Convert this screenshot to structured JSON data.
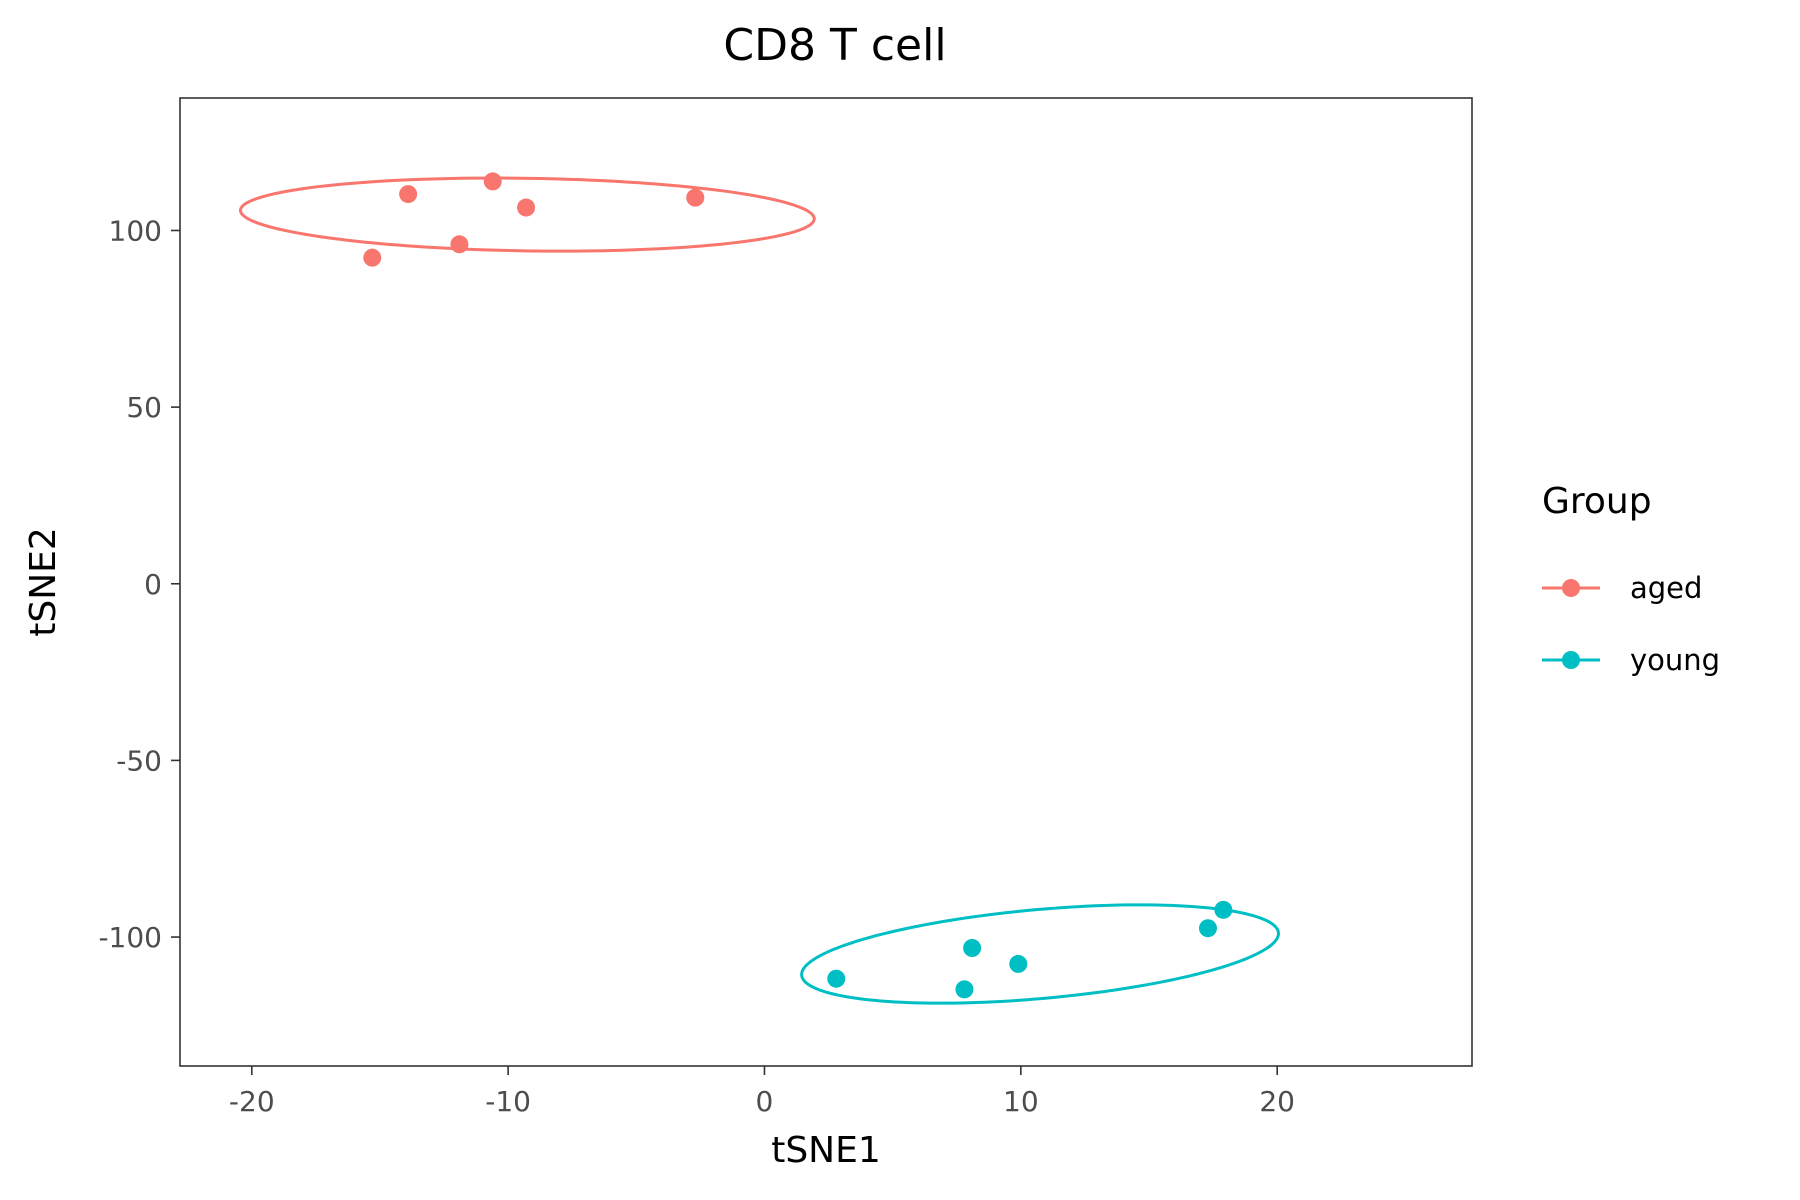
{
  "chart_data": {
    "type": "scatter",
    "title": "CD8 T cell",
    "xlabel": "tSNE1",
    "ylabel": "tSNE2",
    "xlim": [
      -22.8,
      27.6
    ],
    "ylim": [
      -136.5,
      137.5
    ],
    "xticks": [
      -20,
      -10,
      0,
      10,
      20
    ],
    "xtick_labels": [
      "-20",
      "-10",
      "0",
      "10",
      "20"
    ],
    "yticks": [
      -100,
      -50,
      0,
      50,
      100
    ],
    "ytick_labels": [
      "-100",
      "-50",
      "0",
      "50",
      "100"
    ],
    "grid": false,
    "legend": {
      "title": "Group",
      "position": "right"
    },
    "series": [
      {
        "name": "aged",
        "color": "#F8766D",
        "x": [
          -15.3,
          -13.9,
          -11.9,
          -10.6,
          -9.3,
          -2.7
        ],
        "y": [
          92.3,
          110.3,
          96.1,
          113.9,
          106.5,
          109.3
        ],
        "ellipse": {
          "cx": -9.25,
          "cy": 104.5,
          "rx": 10.0,
          "ry": 11.5,
          "slope": 1.9
        }
      },
      {
        "name": "young",
        "color": "#00BFC4",
        "x": [
          2.8,
          7.8,
          8.1,
          9.9,
          17.3,
          17.9
        ],
        "y": [
          -111.8,
          -114.8,
          -103.1,
          -107.6,
          -97.5,
          -92.3
        ],
        "ellipse": {
          "cx": 10.75,
          "cy": -104.8,
          "rx": 14.7,
          "ry": 8.0,
          "slope": 2.4
        }
      }
    ]
  }
}
